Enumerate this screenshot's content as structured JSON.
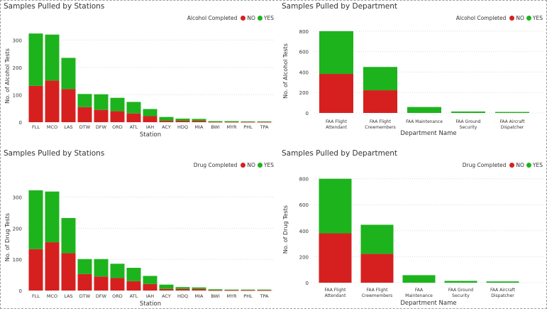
{
  "colors": {
    "no": "#d62020",
    "yes": "#1db31d",
    "grid": "#dcdcdc",
    "text": "#333333"
  },
  "chart_data": [
    {
      "type": "bar",
      "stacked": true,
      "title": "Samples Pulled by Stations",
      "legend_title": "Alcohol Completed",
      "xlabel": "Station",
      "ylabel": "No. of Alcohol Tests",
      "categories": [
        "FLL",
        "MCO",
        "LAS",
        "DTW",
        "DFW",
        "ORD",
        "ATL",
        "IAH",
        "ACY",
        "HDQ",
        "MIA",
        "BWI",
        "MYR",
        "PHL",
        "TPA"
      ],
      "series": [
        {
          "name": "NO",
          "color": "#d62020",
          "values": [
            133,
            152,
            121,
            55,
            45,
            40,
            32,
            22,
            5,
            5,
            5,
            1,
            1,
            1,
            1
          ]
        },
        {
          "name": "YES",
          "color": "#1db31d",
          "values": [
            191,
            168,
            114,
            48,
            57,
            49,
            42,
            26,
            14,
            8,
            7,
            3,
            3,
            2,
            2
          ]
        }
      ],
      "yticks": [
        0,
        100,
        200,
        300
      ],
      "ylim": [
        0,
        340
      ],
      "grid": true,
      "legend_position": "top-right"
    },
    {
      "type": "bar",
      "stacked": true,
      "title": "Samples Pulled by Department",
      "legend_title": "Alcohol Completed",
      "xlabel": "Department Name",
      "ylabel": "No. of Alcohol Tests",
      "categories": [
        [
          "FAA Flight",
          "Attendant"
        ],
        [
          "FAA Flight",
          "Crewmembers"
        ],
        [
          "FAA Maintenance"
        ],
        [
          "FAA Ground",
          "Security"
        ],
        [
          "FAA Aircraft",
          "Dispatcher"
        ]
      ],
      "series": [
        {
          "name": "NO",
          "color": "#d62020",
          "values": [
            382,
            222,
            0,
            0,
            0
          ]
        },
        {
          "name": "YES",
          "color": "#1db31d",
          "values": [
            418,
            228,
            58,
            14,
            10
          ]
        }
      ],
      "yticks": [
        0,
        200,
        400,
        600,
        800
      ],
      "ylim": [
        0,
        820
      ],
      "grid": true,
      "legend_position": "top-right"
    },
    {
      "type": "bar",
      "stacked": true,
      "title": "Samples Pulled by Stations",
      "legend_title": "Drug   Completed",
      "xlabel": "Station",
      "ylabel": "No. of Drug Tests",
      "categories": [
        "FLL",
        "MCO",
        "LAS",
        "DTW",
        "DFW",
        "ORD",
        "ATL",
        "IAH",
        "ACY",
        "HDQ",
        "MIA",
        "BWI",
        "MYR",
        "PHL",
        "TPA"
      ],
      "series": [
        {
          "name": "NO",
          "color": "#d62020",
          "values": [
            133,
            155,
            120,
            53,
            45,
            40,
            30,
            21,
            5,
            5,
            5,
            1,
            1,
            1,
            1
          ]
        },
        {
          "name": "YES",
          "color": "#1db31d",
          "values": [
            189,
            163,
            113,
            48,
            56,
            46,
            43,
            26,
            14,
            6,
            5,
            3,
            2,
            2,
            2
          ]
        }
      ],
      "yticks": [
        0,
        100,
        200,
        300
      ],
      "ylim": [
        0,
        340
      ],
      "grid": true,
      "legend_position": "top-right"
    },
    {
      "type": "bar",
      "stacked": true,
      "title": "Samples Pulled by Department",
      "legend_title": "Drug   Completed",
      "xlabel": "Department Name",
      "ylabel": "No. of Drug Tests",
      "categories": [
        [
          "FAA Flight",
          "Attendant"
        ],
        [
          "FAA Flight",
          "Crewmembers"
        ],
        [
          "FAA",
          "Maintenance"
        ],
        [
          "FAA Ground",
          "Security"
        ],
        [
          "FAA Aircraft",
          "Dispatcher"
        ]
      ],
      "series": [
        {
          "name": "NO",
          "color": "#d62020",
          "values": [
            380,
            222,
            0,
            0,
            0
          ]
        },
        {
          "name": "YES",
          "color": "#1db31d",
          "values": [
            420,
            224,
            58,
            14,
            10
          ]
        }
      ],
      "yticks": [
        0,
        200,
        400,
        600,
        800
      ],
      "ylim": [
        0,
        820
      ],
      "grid": true,
      "legend_position": "top-right"
    }
  ]
}
